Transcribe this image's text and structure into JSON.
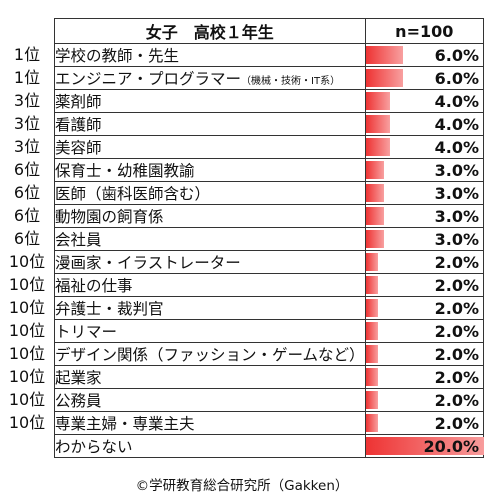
{
  "header": {
    "title": "女子　高校１年生",
    "n": "n=100"
  },
  "rows": [
    {
      "rank": "1位",
      "label": "学校の教師・先生",
      "note": "",
      "value": "6.0%"
    },
    {
      "rank": "1位",
      "label": "エンジニア・プログラマー",
      "note": "（機械・技術・IT系）",
      "value": "6.0%"
    },
    {
      "rank": "3位",
      "label": "薬剤師",
      "note": "",
      "value": "4.0%"
    },
    {
      "rank": "3位",
      "label": "看護師",
      "note": "",
      "value": "4.0%"
    },
    {
      "rank": "3位",
      "label": "美容師",
      "note": "",
      "value": "4.0%"
    },
    {
      "rank": "6位",
      "label": "保育士・幼稚園教諭",
      "note": "",
      "value": "3.0%"
    },
    {
      "rank": "6位",
      "label": "医師（歯科医師含む）",
      "note": "",
      "value": "3.0%"
    },
    {
      "rank": "6位",
      "label": "動物園の飼育係",
      "note": "",
      "value": "3.0%"
    },
    {
      "rank": "6位",
      "label": "会社員",
      "note": "",
      "value": "3.0%"
    },
    {
      "rank": "10位",
      "label": "漫画家・イラストレーター",
      "note": "",
      "value": "2.0%"
    },
    {
      "rank": "10位",
      "label": "福祉の仕事",
      "note": "",
      "value": "2.0%"
    },
    {
      "rank": "10位",
      "label": "弁護士・裁判官",
      "note": "",
      "value": "2.0%"
    },
    {
      "rank": "10位",
      "label": "トリマー",
      "note": "",
      "value": "2.0%"
    },
    {
      "rank": "10位",
      "label": "デザイン関係（ファッション・ゲームなど）",
      "note": "",
      "value": "2.0%"
    },
    {
      "rank": "10位",
      "label": "起業家",
      "note": "",
      "value": "2.0%"
    },
    {
      "rank": "10位",
      "label": "公務員",
      "note": "",
      "value": "2.0%"
    },
    {
      "rank": "10位",
      "label": "専業主婦・専業主夫",
      "note": "",
      "value": "2.0%"
    },
    {
      "rank": "",
      "label": "わからない",
      "note": "",
      "value": "20.0%"
    }
  ],
  "colors": {
    "bar_start": "#ee3333",
    "bar_end": "#f8a0a0"
  },
  "copyright": "©学研教育総合研究所（Gakken）",
  "chart_data": {
    "type": "table",
    "title": "女子　高校１年生",
    "subtitle": "n=100",
    "categories": [
      "学校の教師・先生",
      "エンジニア・プログラマー（機械・技術・IT系）",
      "薬剤師",
      "看護師",
      "美容師",
      "保育士・幼稚園教諭",
      "医師（歯科医師含む）",
      "動物園の飼育係",
      "会社員",
      "漫画家・イラストレーター",
      "福祉の仕事",
      "弁護士・裁判官",
      "トリマー",
      "デザイン関係（ファッション・ゲームなど）",
      "起業家",
      "公務員",
      "専業主婦・専業主夫",
      "わからない"
    ],
    "values": [
      6.0,
      6.0,
      4.0,
      4.0,
      4.0,
      3.0,
      3.0,
      3.0,
      3.0,
      2.0,
      2.0,
      2.0,
      2.0,
      2.0,
      2.0,
      2.0,
      2.0,
      20.0
    ],
    "max_value": 20.0,
    "unit": "%"
  }
}
